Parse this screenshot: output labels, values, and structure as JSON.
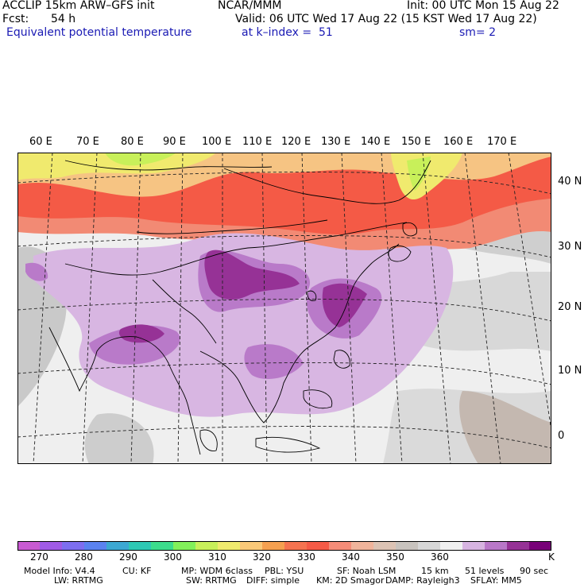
{
  "header": {
    "line1_left": "ACCLIP 15km ARW–GFS init",
    "line1_center": "NCAR/MMM",
    "line1_right": "Init: 00 UTC Mon 15 Aug 22",
    "fcst_label": "Fcst:",
    "fcst_value": "54 h",
    "valid": "Valid: 06 UTC Wed 17 Aug 22 (15 KST Wed 17 Aug 22)",
    "field": "Equivalent potential temperature",
    "level": "at k–index =  51",
    "smoothing": "sm= 2"
  },
  "map": {
    "lon_labels": [
      "60 E",
      "70 E",
      "80 E",
      "90 E",
      "100 E",
      "110 E",
      "120 E",
      "130 E",
      "140 E",
      "150 E",
      "160 E",
      "170 E"
    ],
    "lat_labels": [
      "40 N",
      "30 N",
      "20 N",
      "10 N",
      "0"
    ]
  },
  "colorbar": {
    "colors": [
      "#c85ad2",
      "#a05ae6",
      "#7d6ef0",
      "#5a82f0",
      "#3ca8d2",
      "#2dc8b4",
      "#3cdc8c",
      "#82f05a",
      "#c8f05a",
      "#f0eb6e",
      "#fac878",
      "#f5a050",
      "#f57350",
      "#f55a46",
      "#f58c78",
      "#f0b49b",
      "#dcc3b4",
      "#c8c3be",
      "#d7d7d7",
      "#f0f0f0",
      "#d7b4e1",
      "#b978c8",
      "#963296",
      "#780078"
    ],
    "ticks": [
      "270",
      "280",
      "290",
      "300",
      "310",
      "320",
      "330",
      "340",
      "350",
      "360"
    ],
    "unit": "K"
  },
  "footer": {
    "line1": [
      "Model Info: V4.4",
      "CU: KF",
      "MP: WDM 6class",
      "PBL: YSU",
      "SF: Noah LSM",
      "15 km",
      "51 levels",
      "90 sec"
    ],
    "line2": [
      "LW: RRTMG",
      "SW: RRTMG",
      "DIFF: simple",
      "KM: 2D Smagor",
      "DAMP: Rayleigh3",
      "SFLAY: MM5"
    ]
  }
}
